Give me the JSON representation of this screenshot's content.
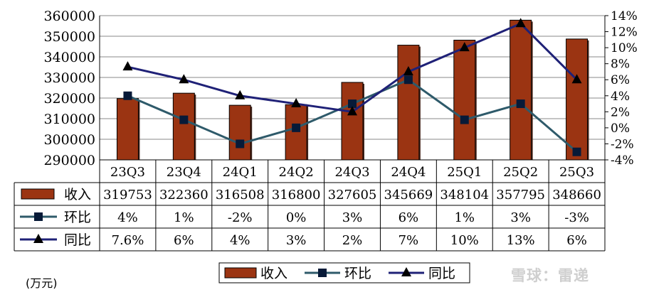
{
  "chart_data": {
    "type": "bar",
    "categories": [
      "23Q3",
      "23Q4",
      "24Q1",
      "24Q2",
      "24Q3",
      "24Q4",
      "25Q1",
      "25Q2",
      "25Q3"
    ],
    "series": [
      {
        "name": "收入",
        "kind": "bar",
        "axis": "left",
        "values": [
          319753,
          322360,
          316508,
          316800,
          327605,
          345669,
          348104,
          357795,
          348660
        ],
        "labels": [
          "319753",
          "322360",
          "316508",
          "316800",
          "327605",
          "345669",
          "348104",
          "357795",
          "348660"
        ],
        "color": "#9b3412"
      },
      {
        "name": "环比",
        "kind": "line",
        "marker": "square",
        "axis": "right",
        "values": [
          4,
          1,
          -2,
          0,
          3,
          6,
          1,
          3,
          -3
        ],
        "labels": [
          "4%",
          "1%",
          "-2%",
          "0%",
          "3%",
          "6%",
          "1%",
          "3%",
          "-3%"
        ],
        "color": "#2e5a6a"
      },
      {
        "name": "同比",
        "kind": "line",
        "marker": "triangle",
        "axis": "right",
        "values": [
          7.6,
          6,
          4,
          3,
          2,
          7,
          10,
          13,
          6
        ],
        "labels": [
          "7.6%",
          "6%",
          "4%",
          "3%",
          "2%",
          "7%",
          "10%",
          "13%",
          "6%"
        ],
        "color": "#1f2177"
      }
    ],
    "y_left": {
      "min": 290000,
      "max": 360000,
      "step": 10000,
      "ticks": [
        "290000",
        "300000",
        "310000",
        "320000",
        "330000",
        "340000",
        "350000",
        "360000"
      ]
    },
    "y_right": {
      "min": -4,
      "max": 14,
      "step": 2,
      "ticks": [
        "-4%",
        "-2%",
        "0%",
        "2%",
        "4%",
        "6%",
        "8%",
        "10%",
        "12%",
        "14%"
      ]
    },
    "grid": true,
    "data_table": true,
    "legend_position": "bottom",
    "unit_label": "(万元)"
  },
  "watermark": "雪球：雷递"
}
